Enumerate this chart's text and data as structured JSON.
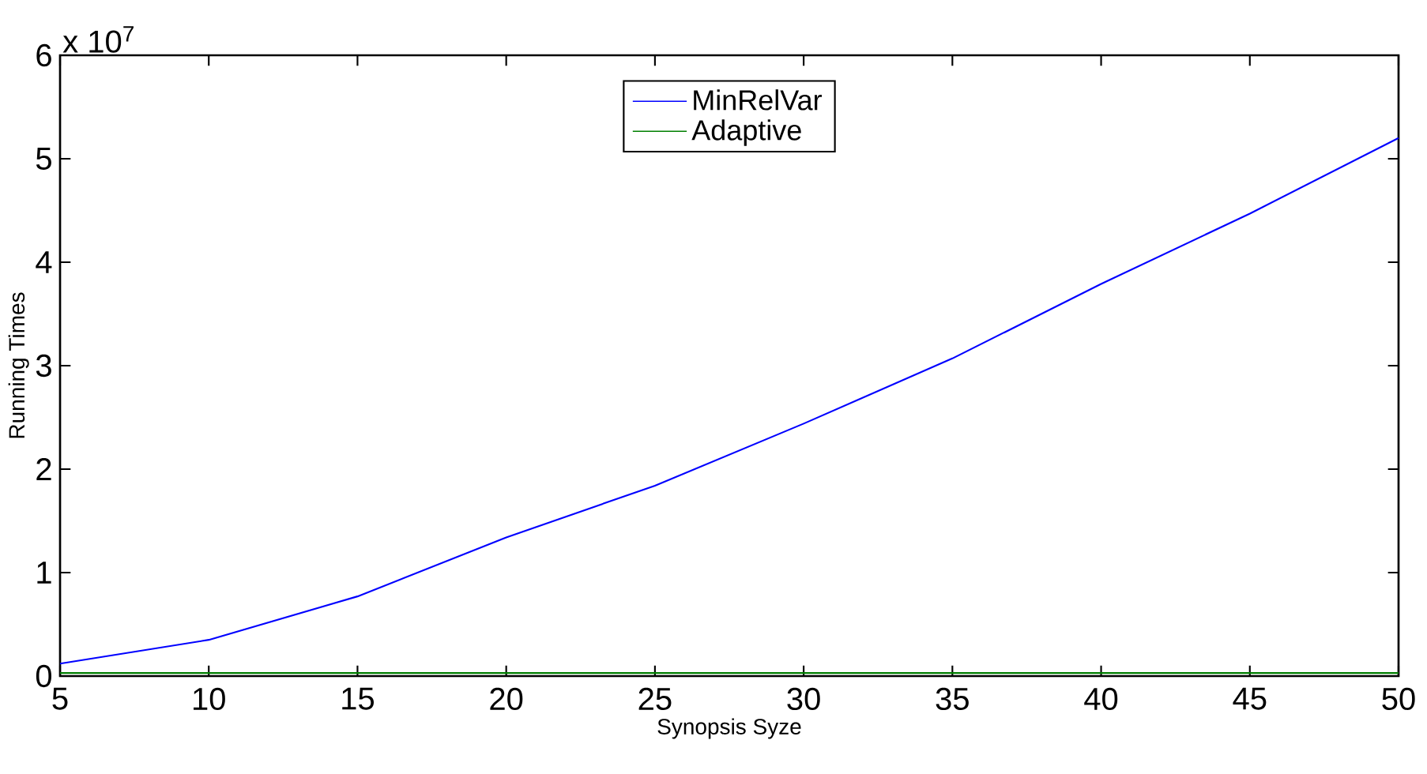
{
  "chart_data": {
    "type": "line",
    "xlabel": "Synopsis Syze",
    "ylabel": "Running Times",
    "annotations": [
      "x 10$^{7}$"
    ],
    "x": [
      5,
      10,
      15,
      20,
      25,
      30,
      35,
      40,
      45,
      50
    ],
    "series": [
      {
        "name": "MinRelVar",
        "color": "#0000ff",
        "values": [
          0.12,
          0.35,
          0.77,
          1.34,
          1.84,
          2.44,
          3.07,
          3.79,
          4.47,
          5.2
        ]
      },
      {
        "name": "Adaptive",
        "color": "#007f00",
        "values": [
          0.03,
          0.03,
          0.03,
          0.03,
          0.03,
          0.03,
          0.03,
          0.03,
          0.03,
          0.03
        ]
      }
    ],
    "xlim": [
      5,
      50
    ],
    "ylim": [
      0,
      6
    ],
    "xticks": [
      5,
      10,
      15,
      20,
      25,
      30,
      35,
      40,
      45,
      50
    ],
    "yticks": [
      0,
      1,
      2,
      3,
      4,
      5,
      6
    ],
    "grid": false,
    "legend": "top",
    "marker": "none",
    "line_style": "solid"
  }
}
